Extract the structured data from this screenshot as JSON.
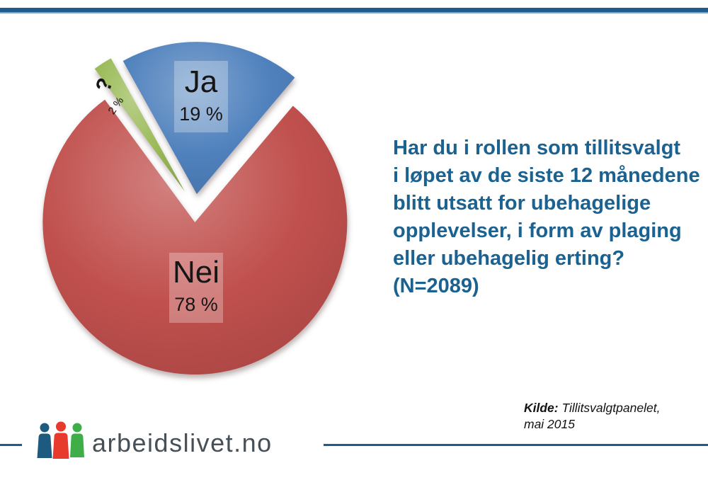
{
  "slide": {
    "background": "#ffffff",
    "top_bar_color": "#1f5c8b",
    "top_bar_accent": "#7aa3c4"
  },
  "chart_data": {
    "type": "pie",
    "title": "",
    "categories": [
      "Ja",
      "Nei",
      "?"
    ],
    "values": [
      19,
      78,
      2
    ],
    "unit": "%",
    "colors": [
      "#4f81bd",
      "#c0504d",
      "#9bbb59"
    ],
    "slice_labels": [
      {
        "name": "Ja",
        "value_text": "19 %"
      },
      {
        "name": "Nei",
        "value_text": "78 %"
      },
      {
        "name": "?",
        "value_text": "2 %"
      }
    ],
    "start_angle_deg": -29,
    "direction": "clockwise",
    "exploded": true,
    "legend": "none"
  },
  "question": {
    "color": "#1c6291",
    "lines": [
      "Har du i rollen som tillitsvalgt",
      "i løpet av de siste 12 månedene",
      "blitt utsatt for ubehagelige",
      "opplevelser, i form av plaging",
      "eller ubehagelig erting?",
      "(N=2089)"
    ]
  },
  "source": {
    "label": "Kilde:",
    "name": " Tillitsvalgtpanelet,",
    "line2": "mai 2015"
  },
  "footer": {
    "logo_text": "arbeidslivet.no",
    "divider_color": "#1f5c8b",
    "people_colors": [
      "#1e5a80",
      "#e8392d",
      "#3fae49"
    ]
  }
}
